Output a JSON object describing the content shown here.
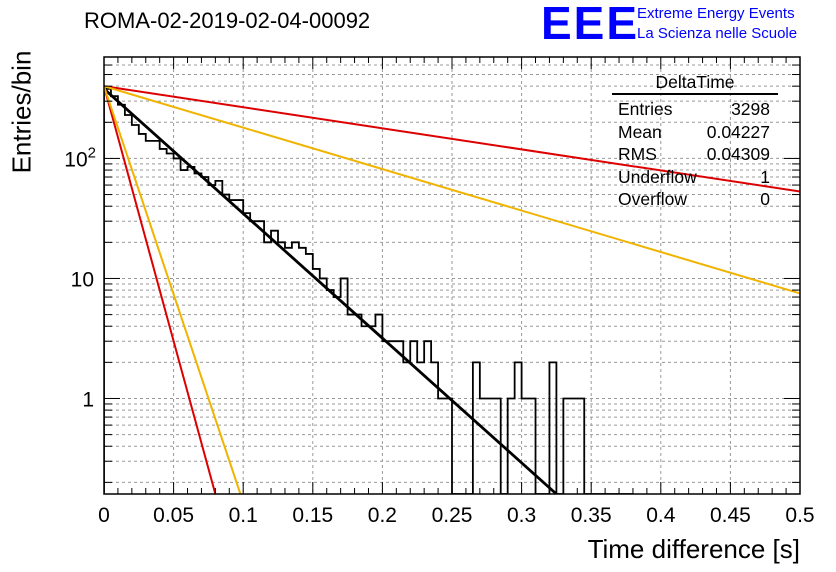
{
  "header": {
    "title": "ROMA-02-2019-02-04-00092",
    "logo_text": "EEE",
    "logo_line1": "Extreme Energy Events",
    "logo_line2": "La Scienza nelle Scuole"
  },
  "stats": {
    "name": "DeltaTime",
    "rows": [
      {
        "label": "Entries",
        "value": "3298"
      },
      {
        "label": "Mean",
        "value": "0.04227"
      },
      {
        "label": "RMS",
        "value": "0.04309"
      },
      {
        "label": "Underflow",
        "value": "1"
      },
      {
        "label": "Overflow",
        "value": "0"
      }
    ]
  },
  "chart_data": {
    "type": "histogram",
    "title": "ROMA-02-2019-02-04-00092",
    "xlabel": "Time difference [s]",
    "ylabel": "Entries/bin",
    "xlim": [
      0,
      0.5
    ],
    "ylim": [
      0.16,
      700
    ],
    "ylog": true,
    "grid": true,
    "xticks": [
      0,
      0.05,
      0.1,
      0.15,
      0.2,
      0.25,
      0.3,
      0.35,
      0.4,
      0.45,
      0.5
    ],
    "xtick_labels": [
      "0",
      "0.05",
      "0.1",
      "0.15",
      "0.2",
      "0.25",
      "0.3",
      "0.35",
      "0.4",
      "0.45",
      "0.5"
    ],
    "yticks": [
      1,
      10,
      100
    ],
    "ytick_labels": [
      "1",
      "10",
      "10^2"
    ],
    "bin_width": 0.005,
    "bin_values": [
      380,
      330,
      280,
      230,
      190,
      160,
      140,
      140,
      120,
      110,
      100,
      80,
      85,
      75,
      70,
      60,
      65,
      50,
      45,
      45,
      35,
      30,
      30,
      20,
      25,
      20,
      18,
      20,
      18,
      16,
      12,
      10,
      8,
      7,
      10,
      5,
      5,
      4,
      4,
      5,
      3,
      3,
      3,
      2,
      3,
      2,
      3,
      2,
      1,
      1,
      0,
      0,
      0,
      2,
      1,
      1,
      1,
      0.1,
      1,
      2,
      1,
      1,
      0.1,
      0.1,
      2,
      0.1,
      1,
      1,
      1,
      0.1,
      0.1,
      0.1,
      0.1,
      0.1,
      0.1,
      0.1
    ],
    "fits": [
      {
        "color": "#000000",
        "x0": 0.0,
        "y0": 380,
        "x1": 0.325,
        "y1": 0.16
      },
      {
        "color": "#dd0000",
        "x0": 0.0,
        "y0": 400,
        "x1": 0.5,
        "y1": 53
      },
      {
        "color": "#f0b400",
        "x0": 0.0,
        "y0": 400,
        "x1": 0.5,
        "y1": 7.5
      },
      {
        "color": "#dd0000",
        "x0": 0.0,
        "y0": 400,
        "x1": 0.08,
        "y1": 0.16
      },
      {
        "color": "#f0b400",
        "x0": 0.0,
        "y0": 400,
        "x1": 0.098,
        "y1": 0.16
      }
    ]
  }
}
